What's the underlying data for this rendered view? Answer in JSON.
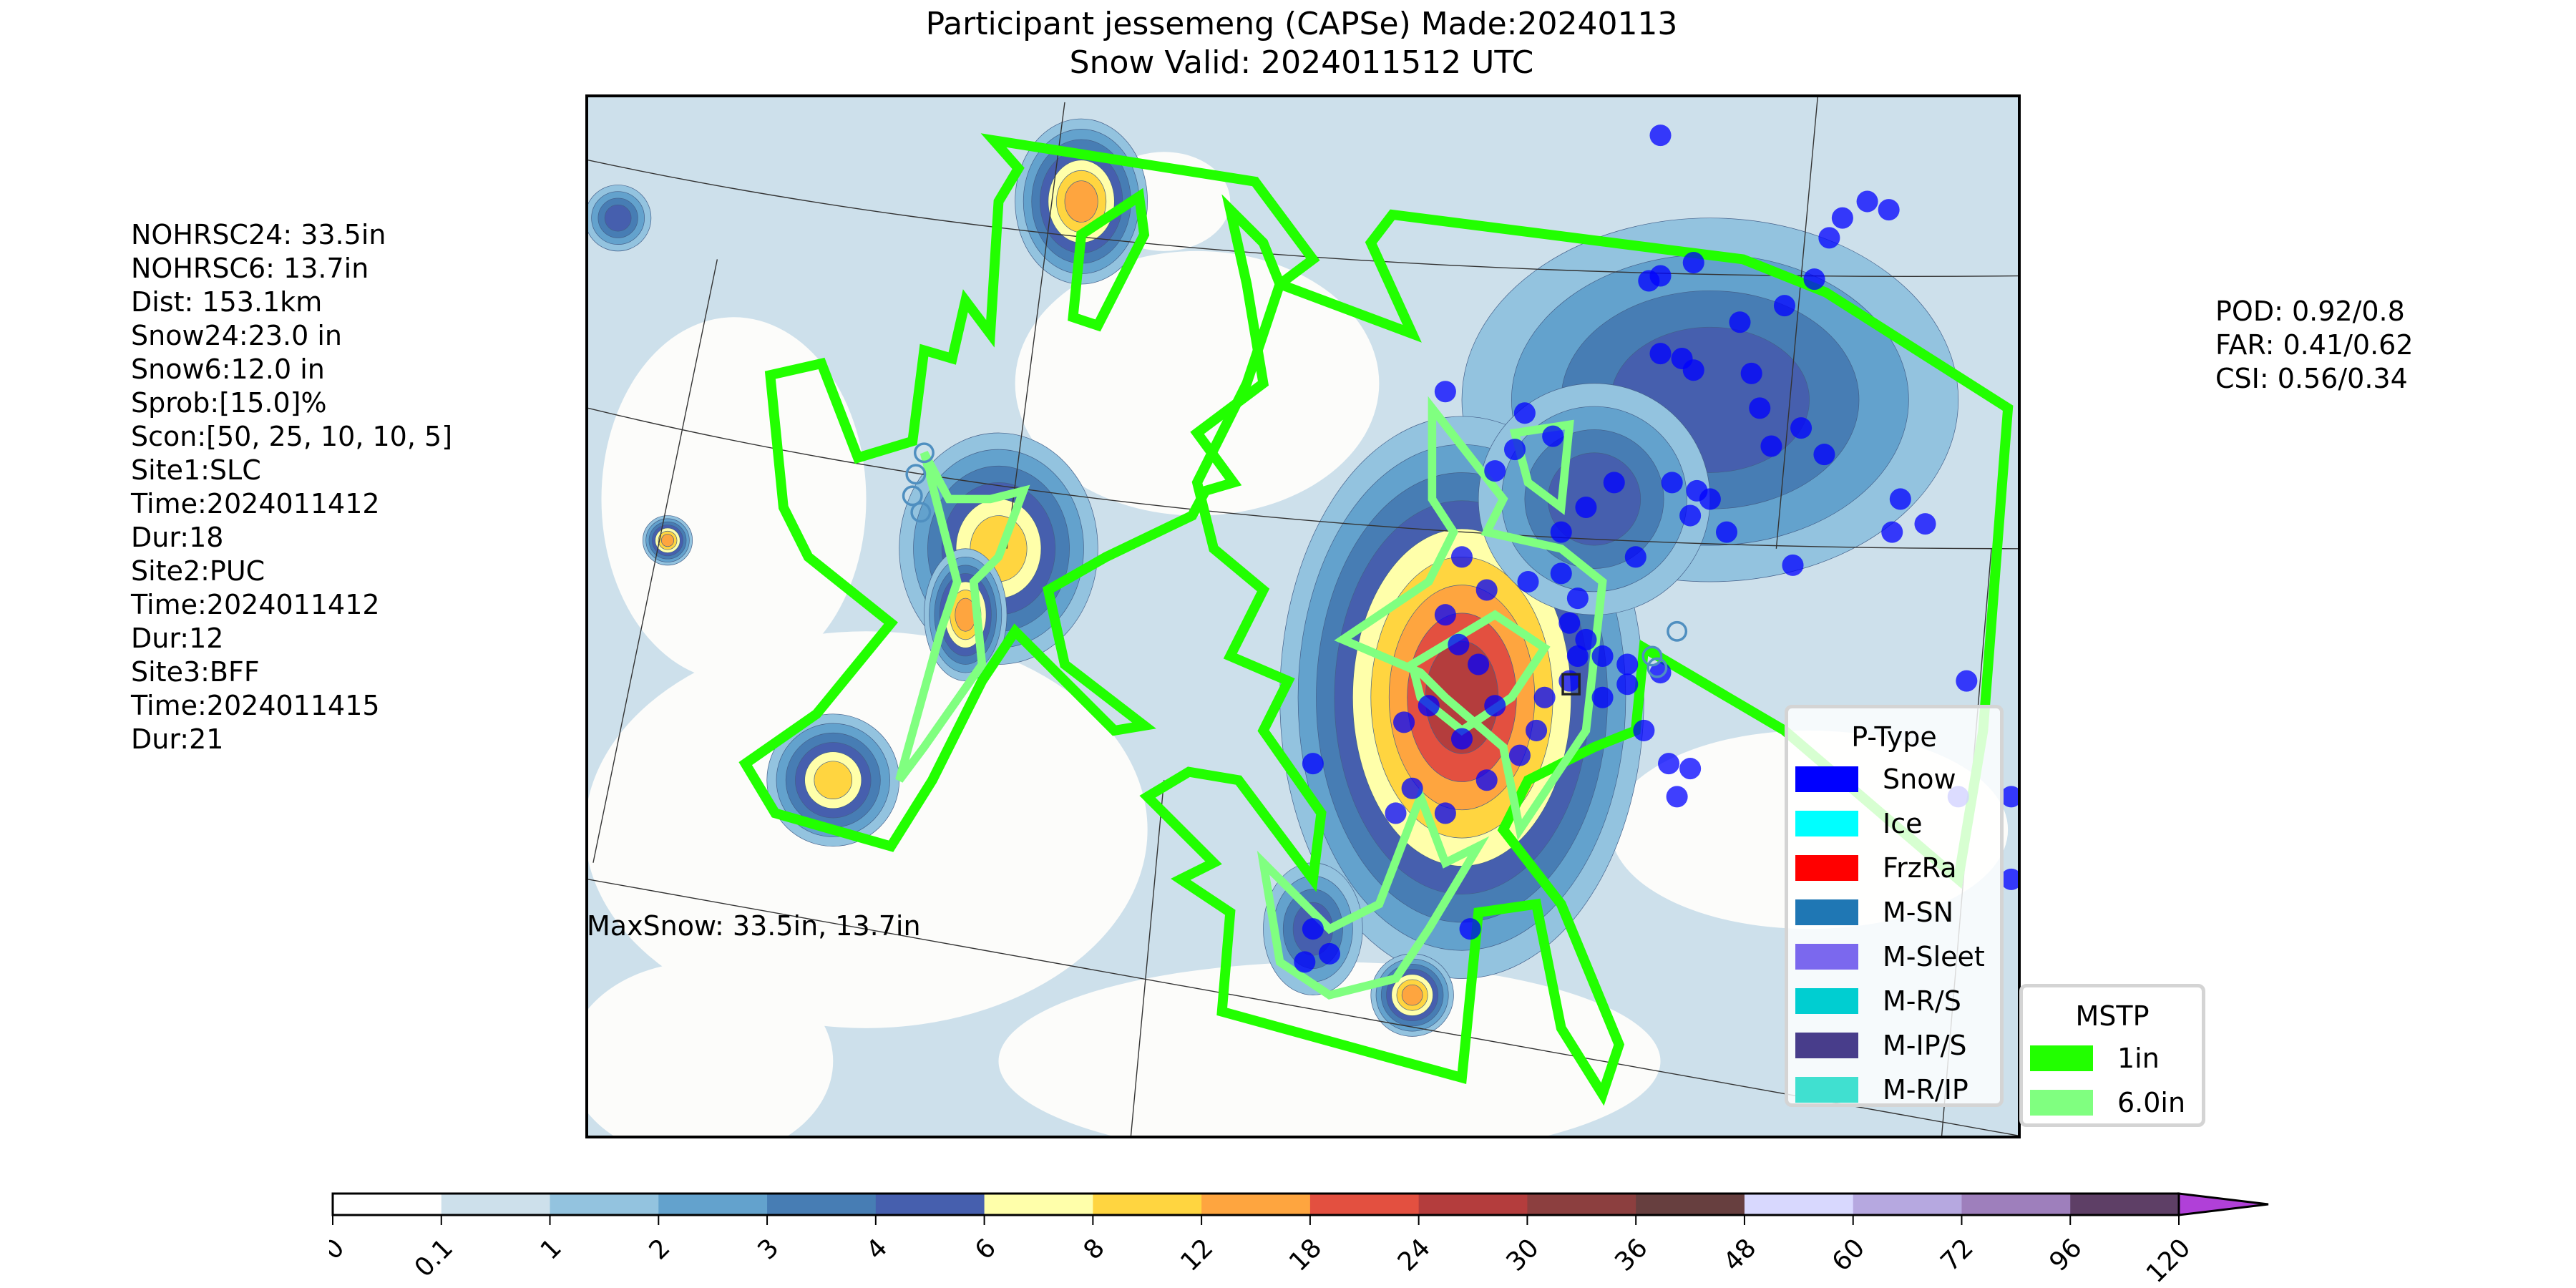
{
  "title": {
    "line1": "Participant jessemeng (CAPSe) Made:20240113",
    "line2": "Snow Valid: 2024011512 UTC"
  },
  "left_stats": [
    "NOHRSC24: 33.5in",
    "NOHRSC6: 13.7in",
    "Dist: 153.1km",
    "Snow24:23.0 in",
    "Snow6:12.0 in",
    "Sprob:[15.0]%",
    "Scon:[50, 25, 10, 10, 5]",
    "Site1:SLC",
    "Time:2024011412",
    "Dur:18",
    "Site2:PUC",
    "Time:2024011412",
    "Dur:12",
    "Site3:BFF",
    "Time:2024011415",
    "Dur:21"
  ],
  "right_stats": [
    "POD: 0.92/0.8",
    "FAR: 0.41/0.62",
    "CSI: 0.56/0.34"
  ],
  "map": {
    "max_snow_label": "MaxSnow: 33.5in, 13.7in",
    "mstp_1in_color": "#22ff00",
    "mstp_6in_color": "#80ff80",
    "snow_report_color": "#0000ff"
  },
  "ptype_legend": {
    "title": "P-Type",
    "items": [
      {
        "label": "Snow",
        "color": "#0000ff"
      },
      {
        "label": "Ice",
        "color": "#00ffff"
      },
      {
        "label": "FrzRa",
        "color": "#ff0000"
      },
      {
        "label": "M-SN",
        "color": "#1f77b4"
      },
      {
        "label": "M-Sleet",
        "color": "#7b68ee"
      },
      {
        "label": "M-R/S",
        "color": "#00ced1"
      },
      {
        "label": "M-IP/S",
        "color": "#483d8b"
      },
      {
        "label": "M-R/IP",
        "color": "#40e0d0"
      }
    ]
  },
  "mstp_legend": {
    "title": "MSTP",
    "items": [
      {
        "label": "1in",
        "color": "#22ff00"
      },
      {
        "label": "6.0in",
        "color": "#80ff80"
      }
    ]
  },
  "colorbar": {
    "ticks": [
      "0",
      "0.1",
      "1",
      "2",
      "3",
      "4",
      "6",
      "8",
      "12",
      "18",
      "24",
      "30",
      "36",
      "48",
      "60",
      "72",
      "96",
      "120"
    ],
    "colors": [
      "#ffffff",
      "#cde0eb",
      "#93c3df",
      "#63a2cd",
      "#477db4",
      "#465fae",
      "#ffffaa",
      "#ffd540",
      "#fea53f",
      "#e35040",
      "#b43d3d",
      "#8c3f3f",
      "#673f3f",
      "#d8d8fe",
      "#b6a8e0",
      "#9e7fbc",
      "#5e3f66"
    ],
    "extend_color": "#b040d8"
  }
}
